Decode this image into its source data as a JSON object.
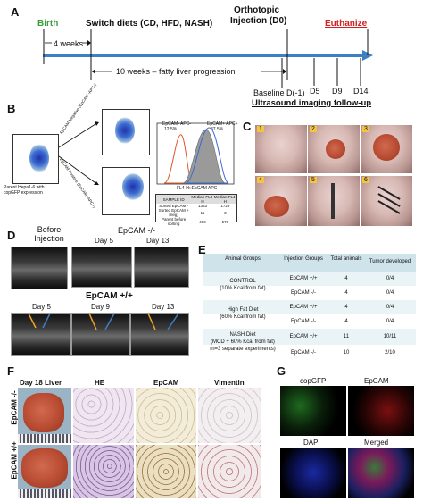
{
  "panelA": {
    "label": "A",
    "birth": "Birth",
    "switch_diets": "Switch diets (CD, HFD, NASH)",
    "orthotopic": "Orthotopic",
    "injection_d0": "Injection (D0)",
    "euthanize": "Euthanize",
    "four_weeks": "4 weeks",
    "ten_weeks": "10 weeks – fatty liver progression",
    "baseline": "Baseline D(-1)",
    "d5": "D5",
    "d9": "D9",
    "d14": "D14",
    "ultrasound": "Ultrasound imaging follow-up",
    "colors": {
      "arrow": "#3d7fc4",
      "birth": "#3a9a3a",
      "euthanize": "#d42020"
    }
  },
  "panelB": {
    "label": "B",
    "parent_caption": "Parent Hepa1-6 with copGFP expression",
    "sort_neg": "EpCAM Negative (EpCAM -APC-)",
    "sort_pos": "EpCAM Positive (EpCAM+APC+)",
    "hist_neg": "EpCAM- APC-",
    "hist_neg_pct": "12.5%",
    "hist_pos": "EpCAM+ APC+",
    "hist_pos_pct": "87.5%",
    "hist_xlabel": "FL4-H::EpCAM APC",
    "table_header": [
      "SAMPLE ID",
      "Median FL4-H",
      "Median FL4-H"
    ],
    "table_rows": [
      [
        "Sorted EpCAM -",
        "1383",
        "1729"
      ],
      [
        "Sorted EpCAM + (neg)",
        "11",
        "3"
      ],
      [
        "Parent before sorting",
        "466",
        "578"
      ]
    ]
  },
  "panelC": {
    "label": "C",
    "steps": [
      "1",
      "2",
      "3",
      "4",
      "5",
      "6"
    ]
  },
  "panelD": {
    "label": "D",
    "before": "Before Injection",
    "epcam_neg": "EpCAM -/-",
    "epcam_pos": "EpCAM +/+",
    "neg_days": [
      "Day 5",
      "Day 13"
    ],
    "pos_days": [
      "Day 5",
      "Day 9",
      "Day 13"
    ]
  },
  "panelE": {
    "label": "E",
    "headers": [
      "Animal Groups",
      "Injection Groups",
      "Total animals",
      "Tumor developed"
    ],
    "groups": [
      {
        "name": "CONTROL",
        "sub": "(10% Kcal from fat)",
        "rows": [
          [
            "EpCAM +/+",
            "4",
            "0/4"
          ],
          [
            "EpCAM -/-",
            "4",
            "0/4"
          ]
        ]
      },
      {
        "name": "High Fat Diet",
        "sub": "(60% Kcal from fat)",
        "rows": [
          [
            "EpCAM +/+",
            "4",
            "0/4"
          ],
          [
            "EpCAM -/-",
            "4",
            "0/4"
          ]
        ]
      },
      {
        "name": "NASH Diet",
        "sub": "(MCD + 60% Kcal from fat)",
        "sub2": "(n=3 separate experiments)",
        "rows": [
          [
            "EpCAM +/+",
            "11",
            "10/11"
          ],
          [
            "EpCAM -/-",
            "10",
            "2/10"
          ]
        ]
      }
    ],
    "colors": {
      "header": "#cfe3ea",
      "row_a": "#eaf3f6",
      "row_b": "#ffffff"
    }
  },
  "panelF": {
    "label": "F",
    "headers": [
      "Day 18 Liver",
      "HE",
      "EpCAM",
      "Vimentin"
    ],
    "row_labels": [
      "EpCAM -/-",
      "EpCAM +/+"
    ]
  },
  "panelG": {
    "label": "G",
    "headers": [
      "copGFP",
      "EpCAM",
      "DAPI",
      "Merged"
    ]
  }
}
